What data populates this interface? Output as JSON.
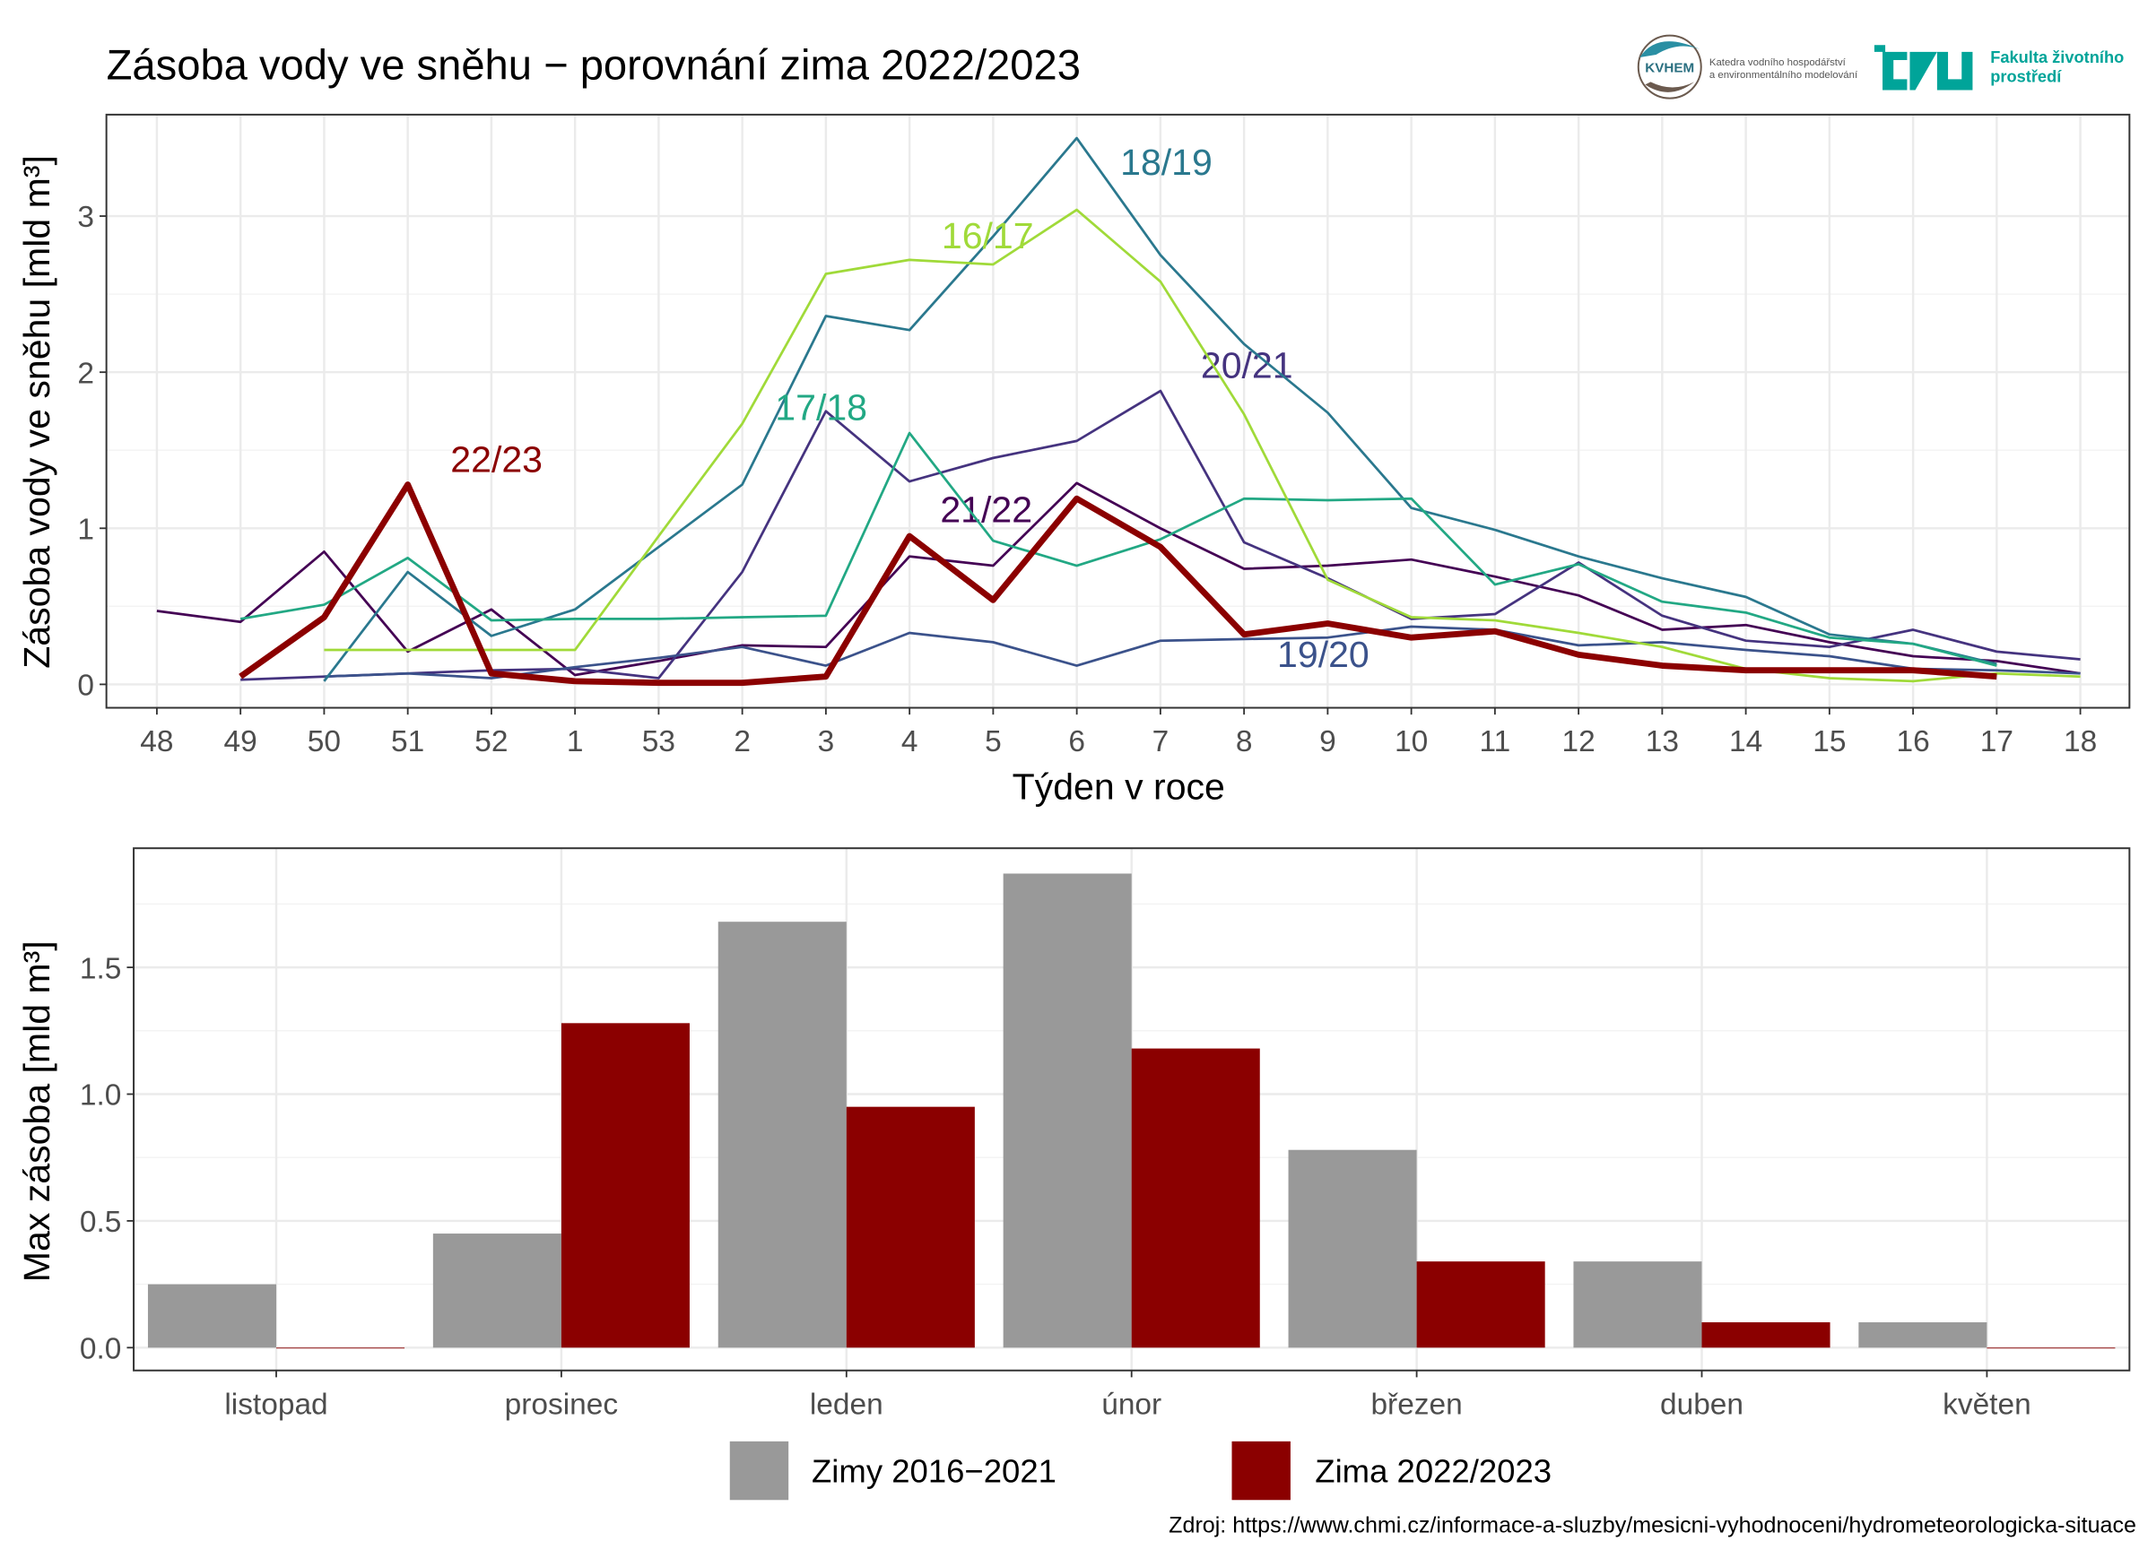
{
  "title": "Zásoba vody ve sněhu − porovnání zima 2022/2023",
  "logos": {
    "kvhem": {
      "mark": "KVHEM",
      "line1": "Katedra vodního hospodářství",
      "line2": "a environmentálního modelování"
    },
    "czu": {
      "mark": "CZU",
      "line1": "Fakulta životního",
      "line2": "prostředí",
      "color": "#00a499"
    }
  },
  "source": "Zdroj: https://www.chmi.cz/informace-a-sluzby/mesicni-vyhodnoceni/hydrometeorologicka-situace",
  "chart_data": [
    {
      "type": "line",
      "title": "Zásoba vody ve sněhu − porovnání zima 2022/2023",
      "xlabel": "Týden v roce",
      "ylabel": "Zásoba vody ve sněhu [mld m³]",
      "categories": [
        "48",
        "49",
        "50",
        "51",
        "52",
        "1",
        "53",
        "2",
        "3",
        "4",
        "5",
        "6",
        "7",
        "8",
        "9",
        "10",
        "11",
        "12",
        "13",
        "14",
        "15",
        "16",
        "17",
        "18"
      ],
      "yticks": [
        0,
        1,
        2,
        3
      ],
      "ylim": [
        -0.15,
        3.65
      ],
      "grid": true,
      "series": [
        {
          "name": "21/22",
          "color": "#440154",
          "values": [
            0.47,
            0.4,
            0.85,
            0.21,
            0.48,
            0.06,
            0.15,
            0.25,
            0.24,
            0.82,
            0.76,
            1.29,
            1.0,
            0.74,
            0.76,
            0.8,
            0.69,
            0.57,
            0.35,
            0.38,
            0.27,
            0.18,
            0.15,
            0.07
          ]
        },
        {
          "name": "20/21",
          "color": "#45337f",
          "values": [
            null,
            0.03,
            0.05,
            0.07,
            0.09,
            0.1,
            0.04,
            0.72,
            1.75,
            1.3,
            1.45,
            1.56,
            1.88,
            0.91,
            0.68,
            0.42,
            0.45,
            0.78,
            0.44,
            0.28,
            0.24,
            0.35,
            0.21,
            0.16
          ]
        },
        {
          "name": "19/20",
          "color": "#3b528b",
          "values": [
            null,
            null,
            0.05,
            0.07,
            0.04,
            0.11,
            0.17,
            0.24,
            0.12,
            0.33,
            0.27,
            0.12,
            0.28,
            0.29,
            0.3,
            0.37,
            0.35,
            0.25,
            0.27,
            0.22,
            0.18,
            0.1,
            0.09,
            0.07
          ]
        },
        {
          "name": "18/19",
          "color": "#2a788e",
          "values": [
            null,
            null,
            0.02,
            0.72,
            0.31,
            0.48,
            0.88,
            1.28,
            2.36,
            2.27,
            2.87,
            3.5,
            2.75,
            2.18,
            1.74,
            1.13,
            0.99,
            0.82,
            0.68,
            0.56,
            0.32,
            0.26,
            0.13,
            null
          ]
        },
        {
          "name": "17/18",
          "color": "#22a884",
          "values": [
            null,
            0.42,
            0.51,
            0.81,
            0.41,
            0.42,
            0.42,
            0.43,
            0.44,
            1.61,
            0.92,
            0.76,
            0.93,
            1.19,
            1.18,
            1.19,
            0.64,
            0.77,
            0.53,
            0.46,
            0.3,
            0.26,
            0.12,
            null
          ]
        },
        {
          "name": "16/17",
          "color": "#a0da39",
          "values": [
            null,
            null,
            0.22,
            0.22,
            0.22,
            0.22,
            0.95,
            1.67,
            2.63,
            2.72,
            2.69,
            3.04,
            2.58,
            1.73,
            0.67,
            0.43,
            0.41,
            0.33,
            0.24,
            0.1,
            0.04,
            0.02,
            0.07,
            0.05
          ]
        },
        {
          "name": "22/23",
          "color": "#8b0000",
          "values": [
            null,
            0.05,
            0.43,
            1.28,
            0.07,
            0.02,
            0.01,
            0.01,
            0.05,
            0.95,
            0.54,
            1.19,
            0.88,
            0.32,
            0.39,
            0.3,
            0.34,
            0.19,
            0.12,
            0.09,
            0.09,
            0.09,
            0.05,
            null
          ]
        }
      ]
    },
    {
      "type": "bar",
      "ylabel": "Max zásoba [mld m³]",
      "categories": [
        "listopad",
        "prosinec",
        "leden",
        "únor",
        "březen",
        "duben",
        "květen"
      ],
      "yticks": [
        "0.0",
        "0.5",
        "1.0",
        "1.5"
      ],
      "ylim": [
        -0.09,
        1.97
      ],
      "grid": true,
      "legend_position": "bottom",
      "series": [
        {
          "name": "Zimy 2016−2021",
          "color": "#999999",
          "values": [
            0.25,
            0.45,
            1.68,
            1.87,
            0.78,
            0.34,
            0.1
          ]
        },
        {
          "name": "Zima 2022/2023",
          "color": "#8b0000",
          "values": [
            0.0,
            1.28,
            0.95,
            1.18,
            0.34,
            0.1,
            0.0
          ]
        }
      ]
    }
  ]
}
